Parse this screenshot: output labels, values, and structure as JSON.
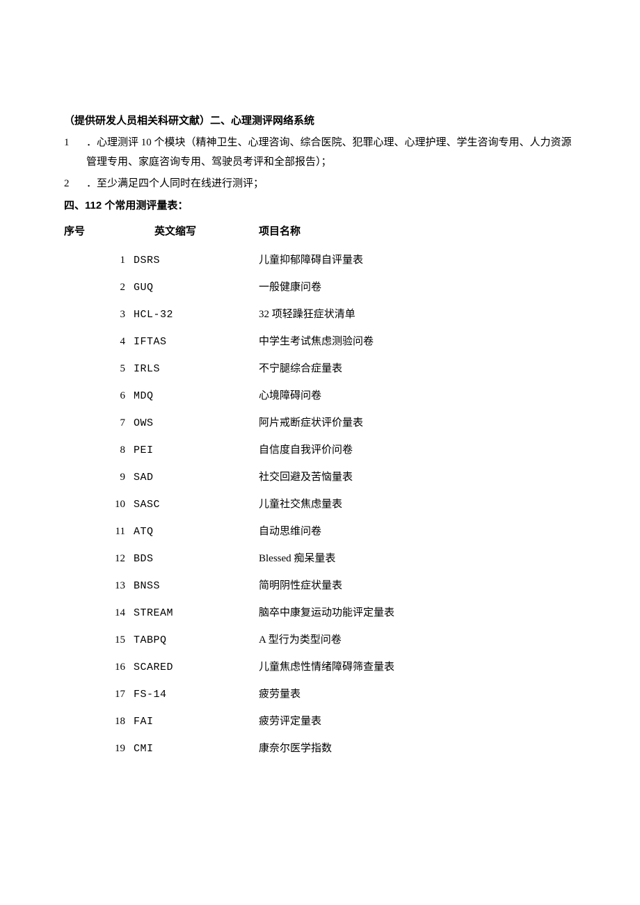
{
  "heading": {
    "prefix": "（提供研发人员相关科研文献）二、心理测评网络系统"
  },
  "list": {
    "items": [
      {
        "num": "1",
        "text": "．心理测评 10 个模块（精神卫生、心理咨询、综合医院、犯罪心理、心理护理、学生咨询专用、人力资源管理专用、家庭咨询专用、驾驶员考评和全部报告）；"
      },
      {
        "num": "2",
        "text": "．至少满足四个人同时在线进行测评；"
      }
    ]
  },
  "section4_title": "四、112 个常用测评量表：",
  "table": {
    "headers": {
      "seq": "序号",
      "abbr": "英文缩写",
      "name": "项目名称"
    },
    "rows": [
      {
        "seq": "1",
        "abbr": "DSRS",
        "name": "儿童抑郁障碍自评量表"
      },
      {
        "seq": "2",
        "abbr": "GUQ",
        "name": "一般健康问卷"
      },
      {
        "seq": "3",
        "abbr": "HCL-32",
        "name": "32 项轻躁狂症状清单"
      },
      {
        "seq": "4",
        "abbr": "IFTAS",
        "name": "中学生考试焦虑测验问卷"
      },
      {
        "seq": "5",
        "abbr": "IRLS",
        "name": "不宁腿综合症量表"
      },
      {
        "seq": "6",
        "abbr": "MDQ",
        "name": "心境障碍问卷"
      },
      {
        "seq": "7",
        "abbr": "OWS",
        "name": "阿片戒断症状评价量表"
      },
      {
        "seq": "8",
        "abbr": "PEI",
        "name": "自信度自我评价问卷"
      },
      {
        "seq": "9",
        "abbr": "SAD",
        "name": "社交回避及苦恼量表"
      },
      {
        "seq": "10",
        "abbr": "SASC",
        "name": "儿童社交焦虑量表"
      },
      {
        "seq": "11",
        "abbr": "ATQ",
        "name": "自动思维问卷"
      },
      {
        "seq": "12",
        "abbr": "BDS",
        "name": "Blessed 痴呆量表"
      },
      {
        "seq": "13",
        "abbr": "BNSS",
        "name": "简明阴性症状量表"
      },
      {
        "seq": "14",
        "abbr": "STREAM",
        "name": "脑卒中康复运动功能评定量表"
      },
      {
        "seq": "15",
        "abbr": "TABPQ",
        "name": "A 型行为类型问卷"
      },
      {
        "seq": "16",
        "abbr": "SCARED",
        "name": "儿童焦虑性情绪障碍筛查量表"
      },
      {
        "seq": "17",
        "abbr": "FS-14",
        "name": "疲劳量表"
      },
      {
        "seq": "18",
        "abbr": "FAI",
        "name": "疲劳评定量表"
      },
      {
        "seq": "19",
        "abbr": "CMI",
        "name": "康奈尔医学指数"
      }
    ]
  }
}
